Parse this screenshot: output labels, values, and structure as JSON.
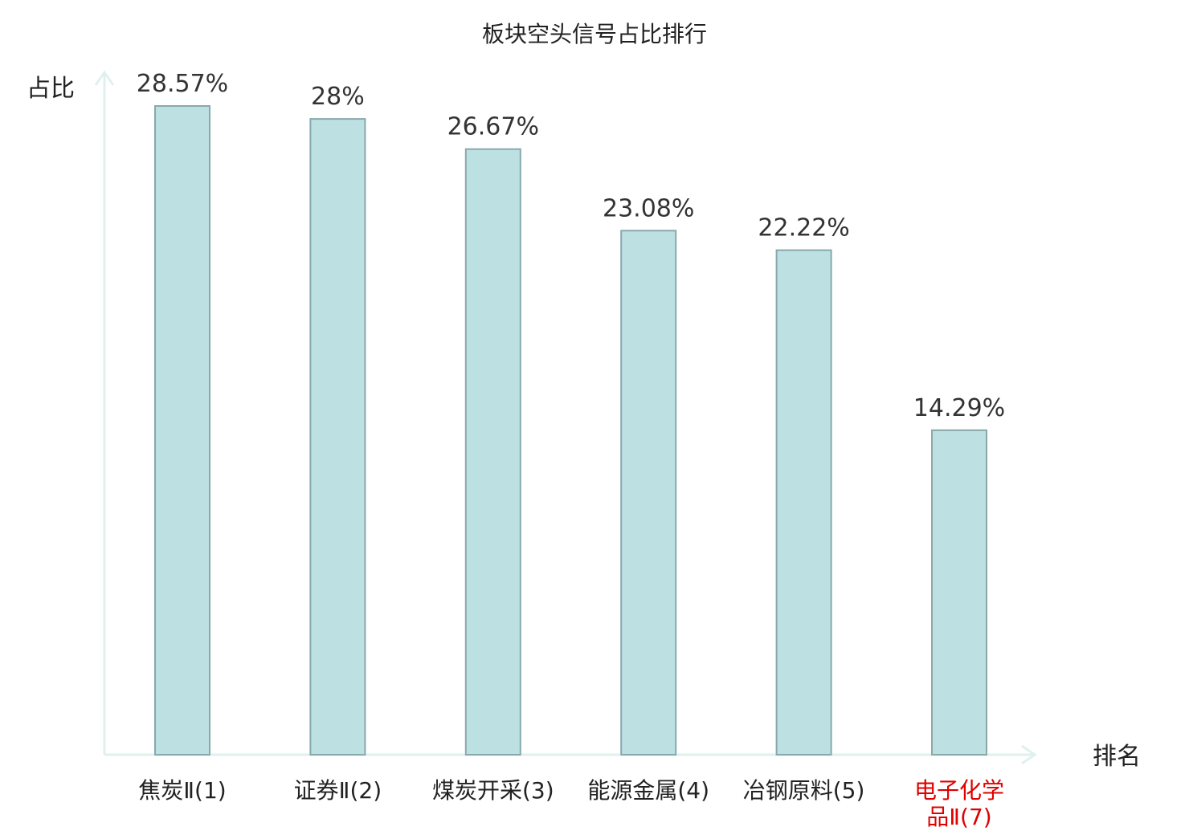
{
  "chart_data": {
    "type": "bar",
    "title": "板块空头信号占比排行",
    "ylabel": "占比",
    "xlabel": "排名",
    "ylim": [
      0,
      30
    ],
    "grid": false,
    "categories": [
      [
        "焦炭Ⅱ(1)"
      ],
      [
        "证券Ⅱ(2)"
      ],
      [
        "煤炭开采(3)"
      ],
      [
        "能源金属(4)"
      ],
      [
        "冶钢原料(5)"
      ],
      [
        "电子化学",
        "品Ⅱ(7)"
      ]
    ],
    "values": [
      28.57,
      28,
      26.67,
      23.08,
      22.22,
      14.29
    ],
    "value_labels": [
      "28.57%",
      "28%",
      "26.67%",
      "23.08%",
      "22.22%",
      "14.29%"
    ],
    "highlight_index": 5,
    "colors": {
      "bar_fill": "#bde0e3",
      "bar_stroke": "#88a9ab",
      "axis": "#dff1ee",
      "label_normal": "#222222",
      "label_highlight": "#e00000"
    }
  }
}
